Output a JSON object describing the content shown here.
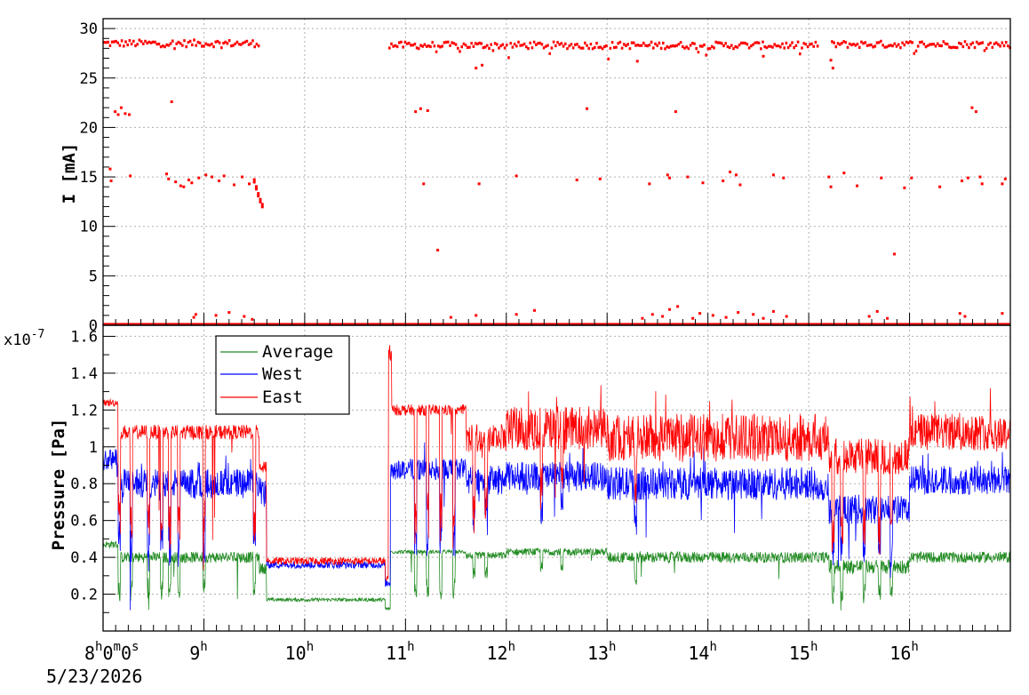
{
  "chart_data": [
    {
      "type": "scatter",
      "panel": "top",
      "ylabel": "I [mA]",
      "ylim": [
        0,
        31
      ],
      "yticks": [
        0,
        5,
        10,
        15,
        20,
        25,
        30
      ],
      "grid": true,
      "x_range_hours": [
        8.0,
        17.0
      ],
      "series": [
        {
          "name": "I",
          "color": "#ff0000",
          "segments": [
            {
              "x": [
                8.0,
                9.55
              ],
              "y": 28.5
            },
            {
              "x": [
                10.83,
                15.08
              ],
              "y": 28.3
            },
            {
              "x": [
                15.22,
                17.0
              ],
              "y": 28.4
            }
          ],
          "baseline": {
            "y": 0.1
          },
          "decay_points": [
            {
              "x": 9.5,
              "y": 14.6
            },
            {
              "x": 9.52,
              "y": 13.9
            },
            {
              "x": 9.54,
              "y": 13.2
            },
            {
              "x": 9.56,
              "y": 12.6
            },
            {
              "x": 9.58,
              "y": 12.1
            }
          ],
          "outliers": [
            {
              "x": 8.07,
              "y": 15.8
            },
            {
              "x": 8.08,
              "y": 14.6
            },
            {
              "x": 8.12,
              "y": 21.6
            },
            {
              "x": 8.15,
              "y": 21.3
            },
            {
              "x": 8.18,
              "y": 22.0
            },
            {
              "x": 8.22,
              "y": 21.4
            },
            {
              "x": 8.26,
              "y": 21.3
            },
            {
              "x": 8.27,
              "y": 15.1
            },
            {
              "x": 8.63,
              "y": 15.3
            },
            {
              "x": 8.65,
              "y": 14.8
            },
            {
              "x": 8.68,
              "y": 22.6
            },
            {
              "x": 8.72,
              "y": 14.5
            },
            {
              "x": 8.77,
              "y": 14.1
            },
            {
              "x": 8.8,
              "y": 14.0
            },
            {
              "x": 8.85,
              "y": 14.7
            },
            {
              "x": 8.88,
              "y": 14.4
            },
            {
              "x": 8.95,
              "y": 14.9
            },
            {
              "x": 9.02,
              "y": 15.2
            },
            {
              "x": 9.08,
              "y": 15.0
            },
            {
              "x": 9.15,
              "y": 14.6
            },
            {
              "x": 9.2,
              "y": 15.1
            },
            {
              "x": 9.3,
              "y": 14.2
            },
            {
              "x": 9.38,
              "y": 15.0
            },
            {
              "x": 9.45,
              "y": 14.3
            },
            {
              "x": 11.1,
              "y": 21.6
            },
            {
              "x": 11.15,
              "y": 21.9
            },
            {
              "x": 11.22,
              "y": 21.7
            },
            {
              "x": 11.18,
              "y": 14.3
            },
            {
              "x": 11.32,
              "y": 7.6
            },
            {
              "x": 11.73,
              "y": 14.3
            },
            {
              "x": 11.7,
              "y": 26.0
            },
            {
              "x": 11.76,
              "y": 26.3
            },
            {
              "x": 12.1,
              "y": 15.1
            },
            {
              "x": 12.7,
              "y": 14.7
            },
            {
              "x": 12.8,
              "y": 21.9
            },
            {
              "x": 12.93,
              "y": 14.8
            },
            {
              "x": 13.3,
              "y": 26.7
            },
            {
              "x": 13.42,
              "y": 14.3
            },
            {
              "x": 13.6,
              "y": 15.2
            },
            {
              "x": 13.62,
              "y": 14.9
            },
            {
              "x": 13.68,
              "y": 21.6
            },
            {
              "x": 13.8,
              "y": 15.0
            },
            {
              "x": 13.95,
              "y": 14.4
            },
            {
              "x": 14.15,
              "y": 14.6
            },
            {
              "x": 14.22,
              "y": 15.5
            },
            {
              "x": 14.28,
              "y": 15.2
            },
            {
              "x": 14.32,
              "y": 14.2
            },
            {
              "x": 14.55,
              "y": 27.2
            },
            {
              "x": 14.65,
              "y": 15.2
            },
            {
              "x": 14.75,
              "y": 14.9
            },
            {
              "x": 15.2,
              "y": 15.0
            },
            {
              "x": 15.22,
              "y": 14.0
            },
            {
              "x": 15.22,
              "y": 26.8
            },
            {
              "x": 15.24,
              "y": 26.0
            },
            {
              "x": 15.35,
              "y": 15.4
            },
            {
              "x": 15.48,
              "y": 14.1
            },
            {
              "x": 15.72,
              "y": 14.9
            },
            {
              "x": 15.85,
              "y": 7.2
            },
            {
              "x": 15.95,
              "y": 13.9
            },
            {
              "x": 16.02,
              "y": 14.9
            },
            {
              "x": 16.3,
              "y": 14.0
            },
            {
              "x": 16.52,
              "y": 14.6
            },
            {
              "x": 16.58,
              "y": 14.9
            },
            {
              "x": 16.62,
              "y": 22.0
            },
            {
              "x": 16.66,
              "y": 21.6
            },
            {
              "x": 16.7,
              "y": 15.0
            },
            {
              "x": 16.72,
              "y": 14.3
            },
            {
              "x": 16.92,
              "y": 14.3
            },
            {
              "x": 16.95,
              "y": 14.8
            },
            {
              "x": 8.9,
              "y": 0.8
            },
            {
              "x": 8.92,
              "y": 1.1
            },
            {
              "x": 9.12,
              "y": 1.0
            },
            {
              "x": 9.25,
              "y": 1.3
            },
            {
              "x": 9.4,
              "y": 0.9
            },
            {
              "x": 9.48,
              "y": 0.6
            },
            {
              "x": 11.45,
              "y": 0.8
            },
            {
              "x": 11.7,
              "y": 1.0
            },
            {
              "x": 12.1,
              "y": 1.1
            },
            {
              "x": 12.28,
              "y": 1.5
            },
            {
              "x": 13.35,
              "y": 0.7
            },
            {
              "x": 13.45,
              "y": 1.1
            },
            {
              "x": 13.55,
              "y": 0.9
            },
            {
              "x": 13.62,
              "y": 1.6
            },
            {
              "x": 13.7,
              "y": 1.9
            },
            {
              "x": 13.85,
              "y": 0.7
            },
            {
              "x": 13.92,
              "y": 1.2
            },
            {
              "x": 14.05,
              "y": 1.0
            },
            {
              "x": 14.18,
              "y": 0.8
            },
            {
              "x": 14.3,
              "y": 1.3
            },
            {
              "x": 14.45,
              "y": 1.1
            },
            {
              "x": 14.55,
              "y": 0.7
            },
            {
              "x": 14.65,
              "y": 1.4
            },
            {
              "x": 14.78,
              "y": 0.9
            },
            {
              "x": 15.6,
              "y": 0.9
            },
            {
              "x": 15.68,
              "y": 1.4
            },
            {
              "x": 15.78,
              "y": 0.7
            },
            {
              "x": 16.5,
              "y": 1.2
            },
            {
              "x": 16.55,
              "y": 0.9
            },
            {
              "x": 16.92,
              "y": 1.2
            }
          ]
        }
      ]
    },
    {
      "type": "line",
      "panel": "bottom",
      "ylabel": "Pressure [Pa]",
      "y_exponent_label": "x10",
      "y_exponent_sup": "-7",
      "ylim": [
        0.0,
        1.66
      ],
      "yticks": [
        0.2,
        0.4,
        0.6,
        0.8,
        1.0,
        1.2,
        1.4,
        1.6
      ],
      "ytick_labels": [
        "0.2",
        "0.4",
        "0.6",
        "0.8",
        "1",
        "1.2",
        "1.4",
        "1.6"
      ],
      "grid": true,
      "legend": "top-left",
      "x_range_hours": [
        8.0,
        17.0
      ],
      "series": [
        {
          "name": "Average",
          "color": "#228b22",
          "profile": [
            {
              "x": 8.0,
              "base": 0.47,
              "noise": 0.02,
              "dips": 0.25
            },
            {
              "x": 8.15,
              "base": 0.4,
              "noise": 0.03,
              "dips": 0.22
            },
            {
              "x": 9.55,
              "base": 0.34,
              "noise": 0.03,
              "dips": 0.18
            },
            {
              "x": 9.62,
              "base": 0.17,
              "noise": 0.01,
              "dips": 0.0
            },
            {
              "x": 10.8,
              "base": 0.12,
              "noise": 0.01,
              "dips": 0.0
            },
            {
              "x": 10.85,
              "base": 0.43,
              "noise": 0.01,
              "dips": 0.25
            },
            {
              "x": 11.6,
              "base": 0.41,
              "noise": 0.02,
              "dips": 0.12
            },
            {
              "x": 12.0,
              "base": 0.43,
              "noise": 0.02,
              "dips": 0.1
            },
            {
              "x": 13.0,
              "base": 0.4,
              "noise": 0.03,
              "dips": 0.14
            },
            {
              "x": 15.1,
              "base": 0.4,
              "noise": 0.03,
              "dips": 0.1
            },
            {
              "x": 15.2,
              "base": 0.35,
              "noise": 0.04,
              "dips": 0.18
            },
            {
              "x": 16.0,
              "base": 0.4,
              "noise": 0.03,
              "dips": 0.12
            },
            {
              "x": 17.0,
              "base": 0.42,
              "noise": 0.02,
              "dips": 0.1
            }
          ]
        },
        {
          "name": "West",
          "color": "#0000ff",
          "profile": [
            {
              "x": 8.0,
              "base": 0.93,
              "noise": 0.06,
              "dips": 0.55
            },
            {
              "x": 8.15,
              "base": 0.8,
              "noise": 0.08,
              "dips": 0.4
            },
            {
              "x": 9.55,
              "base": 0.75,
              "noise": 0.08,
              "dips": 0.3
            },
            {
              "x": 9.62,
              "base": 0.36,
              "noise": 0.02,
              "dips": 0.0
            },
            {
              "x": 10.8,
              "base": 0.26,
              "noise": 0.02,
              "dips": 0.0
            },
            {
              "x": 10.85,
              "base": 0.88,
              "noise": 0.06,
              "dips": 0.45
            },
            {
              "x": 11.6,
              "base": 0.82,
              "noise": 0.08,
              "dips": 0.25
            },
            {
              "x": 12.0,
              "base": 0.84,
              "noise": 0.08,
              "dips": 0.25
            },
            {
              "x": 13.0,
              "base": 0.8,
              "noise": 0.09,
              "dips": 0.25
            },
            {
              "x": 15.1,
              "base": 0.78,
              "noise": 0.08,
              "dips": 0.2
            },
            {
              "x": 15.2,
              "base": 0.66,
              "noise": 0.08,
              "dips": 0.3
            },
            {
              "x": 16.0,
              "base": 0.82,
              "noise": 0.08,
              "dips": 0.25
            },
            {
              "x": 17.0,
              "base": 0.8,
              "noise": 0.08,
              "dips": 0.2
            }
          ]
        },
        {
          "name": "East",
          "color": "#ff0000",
          "profile": [
            {
              "x": 8.0,
              "base": 1.24,
              "noise": 0.02,
              "dips": 0.75
            },
            {
              "x": 8.15,
              "base": 1.08,
              "noise": 0.04,
              "dips": 0.6
            },
            {
              "x": 9.55,
              "base": 0.9,
              "noise": 0.05,
              "dips": 0.35
            },
            {
              "x": 9.62,
              "base": 0.38,
              "noise": 0.02,
              "dips": 0.0
            },
            {
              "x": 10.8,
              "base": 0.28,
              "noise": 0.02,
              "dips": 0.0
            },
            {
              "x": 10.85,
              "base": 1.2,
              "noise": 0.03,
              "dips": 0.75
            },
            {
              "x": 11.6,
              "base": 1.05,
              "noise": 0.08,
              "dips": 0.5
            },
            {
              "x": 12.0,
              "base": 1.1,
              "noise": 0.12,
              "dips": 0.35
            },
            {
              "x": 13.0,
              "base": 1.05,
              "noise": 0.13,
              "dips": 0.3
            },
            {
              "x": 15.1,
              "base": 1.02,
              "noise": 0.1,
              "dips": 0.3
            },
            {
              "x": 15.2,
              "base": 0.95,
              "noise": 0.1,
              "dips": 0.45
            },
            {
              "x": 16.0,
              "base": 1.08,
              "noise": 0.1,
              "dips": 0.3
            },
            {
              "x": 17.0,
              "base": 1.1,
              "noise": 0.1,
              "dips": 0.3
            }
          ]
        }
      ],
      "events": [
        {
          "x": 8.16,
          "kind": "drop"
        },
        {
          "x": 8.28,
          "kind": "drop"
        },
        {
          "x": 8.45,
          "kind": "drop"
        },
        {
          "x": 8.58,
          "kind": "drop"
        },
        {
          "x": 8.66,
          "kind": "drop"
        },
        {
          "x": 8.75,
          "kind": "drop"
        },
        {
          "x": 9.0,
          "kind": "drop"
        },
        {
          "x": 9.5,
          "kind": "drop"
        },
        {
          "x": 11.1,
          "kind": "drop"
        },
        {
          "x": 11.22,
          "kind": "drop"
        },
        {
          "x": 11.35,
          "kind": "drop"
        },
        {
          "x": 11.48,
          "kind": "drop"
        },
        {
          "x": 11.68,
          "kind": "drop"
        },
        {
          "x": 11.8,
          "kind": "drop"
        },
        {
          "x": 12.35,
          "kind": "drop"
        },
        {
          "x": 12.55,
          "kind": "drop"
        },
        {
          "x": 13.28,
          "kind": "drop"
        },
        {
          "x": 15.24,
          "kind": "drop"
        },
        {
          "x": 15.33,
          "kind": "drop"
        },
        {
          "x": 15.55,
          "kind": "drop"
        },
        {
          "x": 15.7,
          "kind": "drop"
        },
        {
          "x": 15.82,
          "kind": "drop"
        }
      ]
    }
  ],
  "time_axis": {
    "start_label": {
      "h": "8",
      "h_unit": "h",
      "m": "0",
      "m_unit": "m",
      "s": "0",
      "s_unit": "s"
    },
    "date": "5/23/2026",
    "ticks": [
      {
        "hour": 9,
        "label": "9",
        "unit": "h"
      },
      {
        "hour": 10,
        "label": "10",
        "unit": "h"
      },
      {
        "hour": 11,
        "label": "11",
        "unit": "h"
      },
      {
        "hour": 12,
        "label": "12",
        "unit": "h"
      },
      {
        "hour": 13,
        "label": "13",
        "unit": "h"
      },
      {
        "hour": 14,
        "label": "14",
        "unit": "h"
      },
      {
        "hour": 15,
        "label": "15",
        "unit": "h"
      },
      {
        "hour": 16,
        "label": "16",
        "unit": "h"
      }
    ]
  }
}
